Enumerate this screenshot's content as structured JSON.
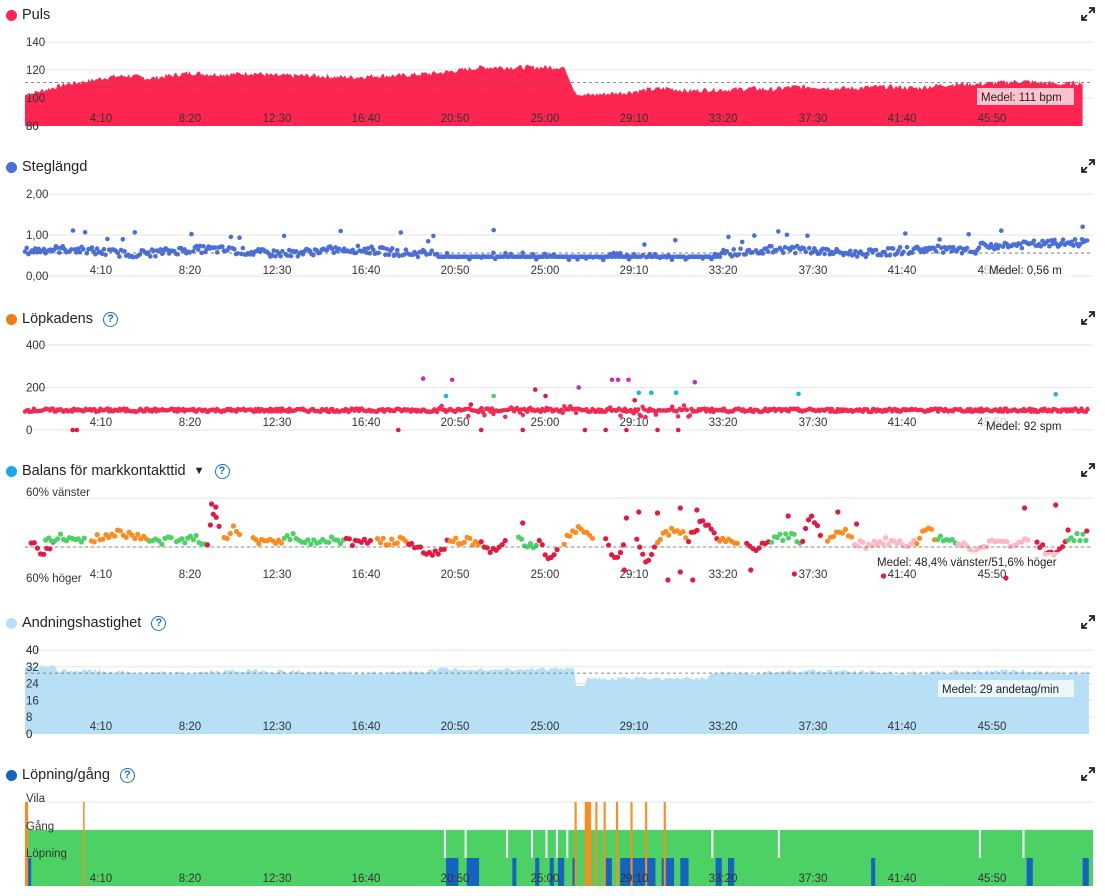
{
  "colors": {
    "pulse": "#ff2551",
    "stride": "#4a6fdc",
    "cadence": "#ee7d15",
    "balance": "#19a8ea",
    "resp": "#b7e0f6",
    "runwalk": "#1565c0",
    "green": "#4cd264",
    "orange": "#ff8a1e",
    "magenta": "#c72fb6",
    "cyan": "#19b6e6",
    "red": "#e8173f",
    "pink": "#ffb7c3"
  },
  "x_ticks": [
    "4:10",
    "8:20",
    "12:30",
    "16:40",
    "20:50",
    "25:00",
    "29:10",
    "33:20",
    "37:30",
    "41:40",
    "45:50"
  ],
  "chart_data": [
    {
      "type": "area",
      "title": "Puls",
      "ylim": [
        80,
        140
      ],
      "yticks": [
        "140",
        "120",
        "100",
        "80"
      ],
      "avg_label": "Medel: 111 bpm",
      "avg_value": 111,
      "x_minutes": [
        0,
        1,
        2,
        3,
        4,
        5,
        6,
        7,
        8,
        9,
        10,
        11,
        12,
        13,
        14,
        15,
        16,
        17,
        18,
        19,
        20,
        21,
        22,
        23,
        24,
        25,
        26,
        26.5,
        27,
        28,
        29,
        30,
        31,
        32,
        33,
        34,
        35,
        36,
        37,
        38,
        39,
        40,
        41,
        42,
        43,
        44,
        45,
        46,
        47,
        48,
        49,
        50,
        51
      ],
      "values": [
        102,
        106,
        110,
        112,
        115,
        116,
        114,
        116,
        118,
        117,
        117,
        118,
        116,
        116,
        116,
        115,
        115,
        116,
        116,
        117,
        118,
        120,
        122,
        122,
        122,
        122,
        122,
        104,
        102,
        103,
        104,
        106,
        107,
        105,
        106,
        106,
        107,
        106,
        108,
        108,
        107,
        107,
        108,
        108,
        107,
        109,
        110,
        110,
        111,
        112,
        111,
        110,
        111
      ]
    },
    {
      "type": "scatter",
      "title": "Steglängd",
      "ylim": [
        0,
        2
      ],
      "yticks": [
        "2,00",
        "1,00",
        "0,00"
      ],
      "avg_label": "Medel: 0,56 m",
      "avg_value": 0.56
    },
    {
      "type": "scatter",
      "title": "Löpkadens",
      "ylim": [
        0,
        400
      ],
      "yticks": [
        "400",
        "200",
        "0"
      ],
      "avg_label": "Medel: 92 spm",
      "avg_value": 92
    },
    {
      "type": "scatter",
      "title": "Balans för markkontakttid",
      "yticks": [
        "60% vänster",
        "60% höger"
      ],
      "avg_label": "Medel: 48,4% vänster/51,6% höger",
      "avg_value": 50
    },
    {
      "type": "area",
      "title": "Andningshastighet",
      "ylim": [
        0,
        40
      ],
      "yticks": [
        "40",
        "32",
        "24",
        "16",
        "8",
        "0"
      ],
      "avg_label": "Medel: 29 andetag/min",
      "avg_value": 29
    },
    {
      "type": "bar",
      "title": "Löpning/gång",
      "categories": [
        "Vila",
        "Gång",
        "Löpning"
      ]
    }
  ]
}
